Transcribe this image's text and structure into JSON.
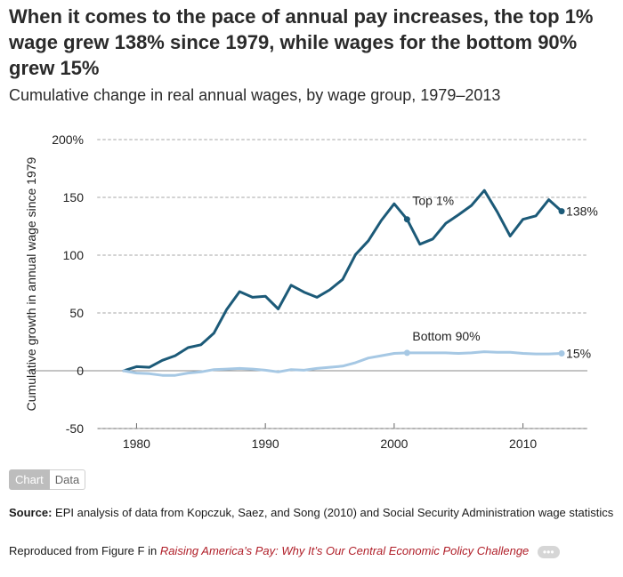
{
  "header": {
    "title": "When it comes to the pace of annual pay increases, the top 1% wage grew 138% since 1979, while wages for the bottom 90% grew 15%",
    "subtitle": "Cumulative change in real annual wages, by wage group, 1979–2013"
  },
  "tabs": {
    "chart_label": "Chart",
    "data_label": "Data"
  },
  "footer": {
    "source_label": "Source:",
    "source_text": "EPI analysis of data from Kopczuk, Saez, and Song (2010) and Social Security Administration wage statistics",
    "repro_prefix": "Reproduced from Figure F in",
    "repro_link": "Raising America’s Pay: Why It’s Our Central Economic Policy Challenge",
    "more_label": "•••"
  },
  "colors": {
    "top1": "#1c5a78",
    "bottom90": "#a6c8e4",
    "grid": "#d2d2d2",
    "zero": "#8a8a8a"
  },
  "chart_data": {
    "type": "line",
    "ylabel": "Cumulative growth in annual wage since 1979",
    "xlabel": "",
    "xlim": [
      1977,
      2015
    ],
    "ylim": [
      -50,
      200
    ],
    "x_ticks": [
      1980,
      1990,
      2000,
      2010
    ],
    "y_ticks": [
      200,
      150,
      100,
      50,
      0,
      -50
    ],
    "y_tick_labels": [
      "200%",
      "150",
      "100",
      "50",
      "0",
      "-50"
    ],
    "grid": true,
    "x": [
      1979,
      1980,
      1981,
      1982,
      1983,
      1984,
      1985,
      1986,
      1987,
      1988,
      1989,
      1990,
      1991,
      1992,
      1993,
      1994,
      1995,
      1996,
      1997,
      1998,
      1999,
      2000,
      2001,
      2002,
      2003,
      2004,
      2005,
      2006,
      2007,
      2008,
      2009,
      2010,
      2011,
      2012,
      2013
    ],
    "series": [
      {
        "name": "Top 1%",
        "values": [
          0,
          3.5,
          3,
          9,
          13,
          20,
          22.5,
          32.5,
          53,
          68.5,
          63.5,
          64.5,
          53.5,
          74,
          68,
          63.5,
          70,
          79,
          100.5,
          112.5,
          130,
          144.5,
          131,
          109.5,
          114,
          127.5,
          135,
          143,
          156,
          137.5,
          116.5,
          131,
          134,
          148,
          138
        ],
        "label": "Top 1%",
        "end_label": "138%",
        "marker_x": 2001,
        "marker_value": 131
      },
      {
        "name": "Bottom 90%",
        "values": [
          0,
          -2,
          -2.5,
          -4,
          -4,
          -2,
          -1,
          1,
          1.5,
          2,
          1.5,
          0.5,
          -1,
          1,
          0.5,
          2,
          3,
          4,
          7,
          11,
          13,
          15,
          15.5,
          15.5,
          15.5,
          15.5,
          15,
          15.5,
          16.5,
          16,
          16,
          15,
          14.5,
          14.5,
          15
        ],
        "label": "Bottom 90%",
        "end_label": "15%",
        "marker_x": 2001,
        "marker_value": 15.5
      }
    ]
  }
}
